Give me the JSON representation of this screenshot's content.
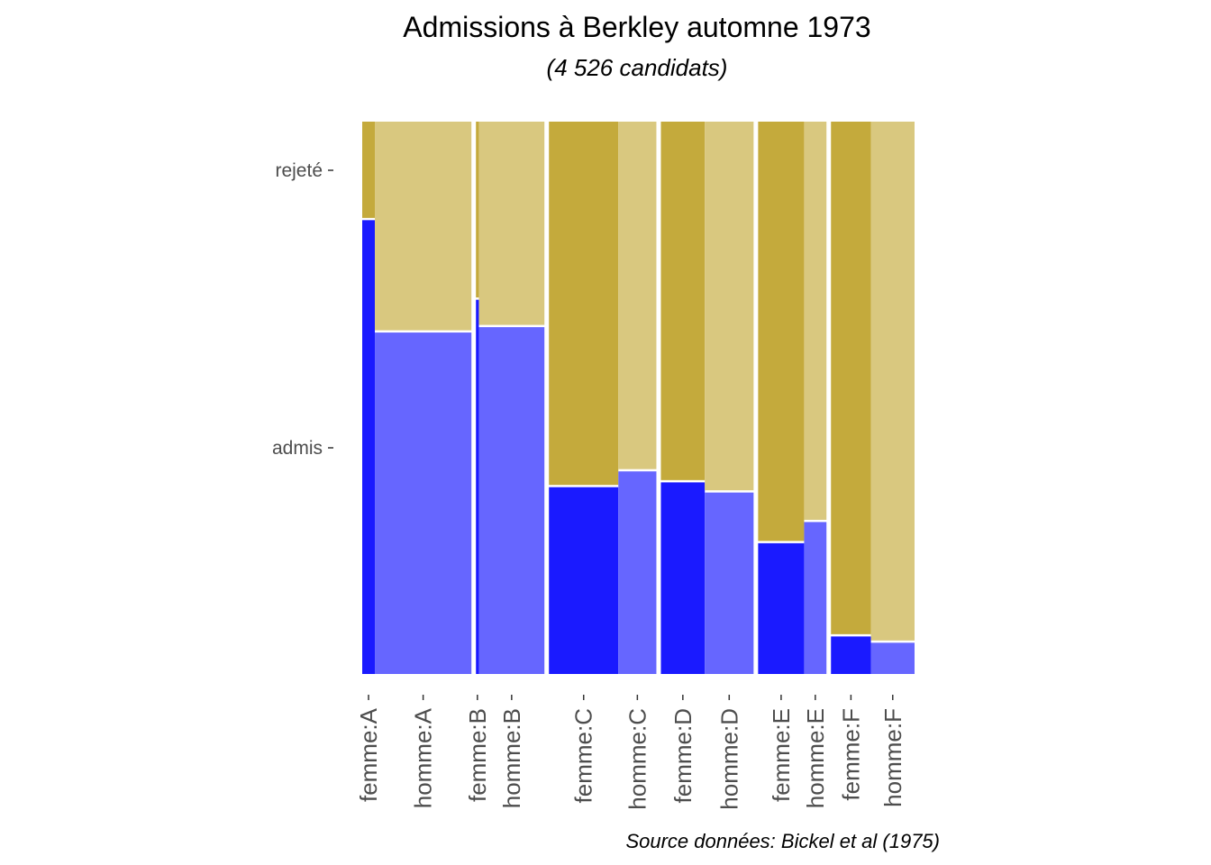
{
  "chart_data": {
    "type": "mosaic",
    "title": "Admissions à Berkley automne 1973",
    "subtitle": "(4 526 candidats)",
    "caption": "Source données: Bickel et al (1975)",
    "y_categories": [
      "admis",
      "rejeté"
    ],
    "categories": [
      "femme:A",
      "homme:A",
      "femme:B",
      "homme:B",
      "femme:C",
      "homme:C",
      "femme:D",
      "homme:D",
      "femme:E",
      "homme:E",
      "femme:F",
      "homme:F"
    ],
    "groups": [
      {
        "dept": "A",
        "sex": "femme",
        "admitted": 89,
        "rejected": 19
      },
      {
        "dept": "A",
        "sex": "homme",
        "admitted": 512,
        "rejected": 313
      },
      {
        "dept": "B",
        "sex": "femme",
        "admitted": 17,
        "rejected": 8
      },
      {
        "dept": "B",
        "sex": "homme",
        "admitted": 353,
        "rejected": 207
      },
      {
        "dept": "C",
        "sex": "femme",
        "admitted": 202,
        "rejected": 391
      },
      {
        "dept": "C",
        "sex": "homme",
        "admitted": 120,
        "rejected": 205
      },
      {
        "dept": "D",
        "sex": "femme",
        "admitted": 131,
        "rejected": 244
      },
      {
        "dept": "D",
        "sex": "homme",
        "admitted": 138,
        "rejected": 279
      },
      {
        "dept": "E",
        "sex": "femme",
        "admitted": 94,
        "rejected": 299
      },
      {
        "dept": "E",
        "sex": "homme",
        "admitted": 53,
        "rejected": 138
      },
      {
        "dept": "F",
        "sex": "femme",
        "admitted": 24,
        "rejected": 317
      },
      {
        "dept": "F",
        "sex": "homme",
        "admitted": 22,
        "rejected": 351
      }
    ],
    "colors": {
      "femme_admis": "#1a1aff",
      "homme_admis": "#6666ff",
      "femme_rejete": "#c4aa3c",
      "homme_rejete": "#d9c87f"
    }
  }
}
